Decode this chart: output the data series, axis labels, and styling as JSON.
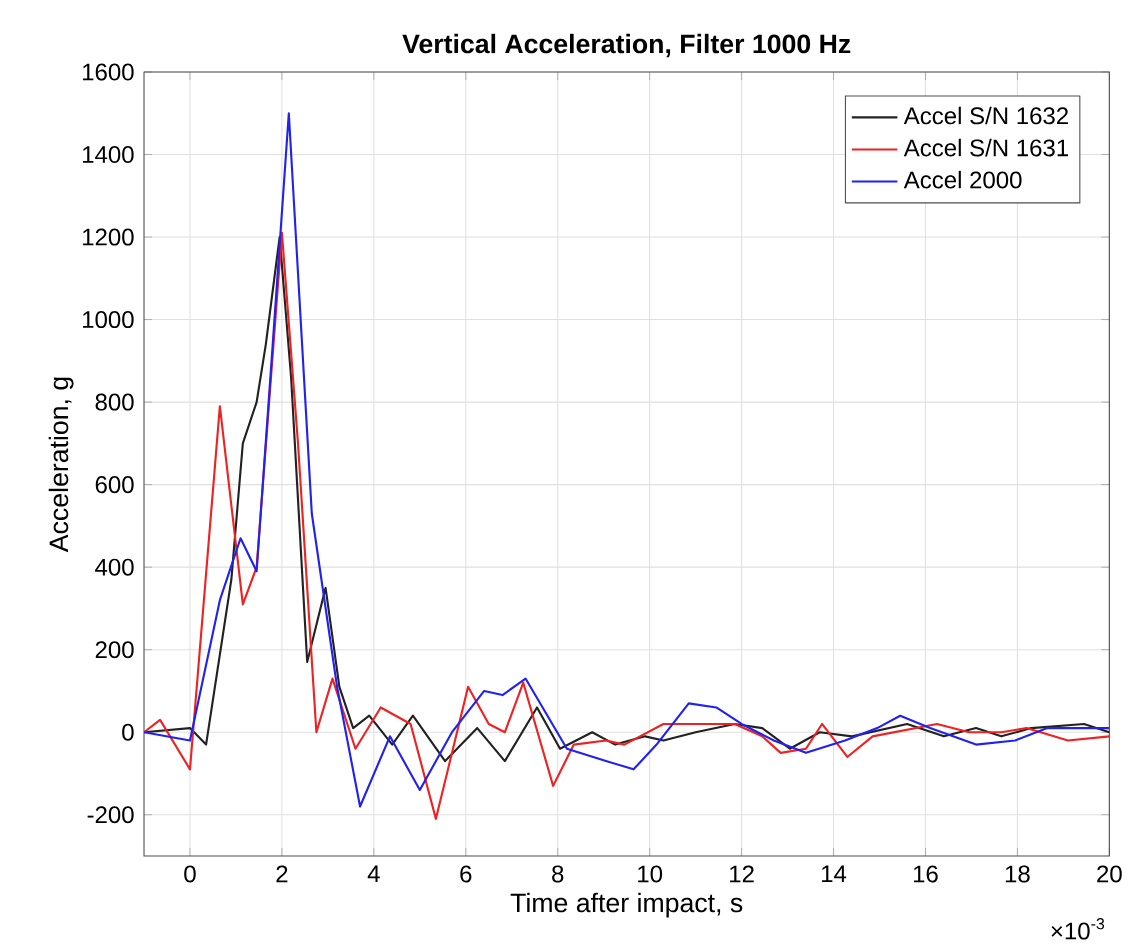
{
  "chart_data": {
    "type": "line",
    "title": "Vertical Acceleration, Filter 1000 Hz",
    "xlabel": "Time after impact, s",
    "ylabel": "Acceleration, g",
    "annotations": [
      "×10$^{-3}$"
    ],
    "xlim": [
      -1,
      20
    ],
    "ylim": [
      -300,
      1600
    ],
    "xticks": [
      0,
      2,
      4,
      6,
      8,
      10,
      12,
      14,
      16,
      18,
      20
    ],
    "yticks": [
      -200,
      0,
      200,
      400,
      600,
      800,
      1000,
      1200,
      1400,
      1600
    ],
    "grid": true,
    "legend": "top right",
    "marker": "none",
    "line_style": "solid",
    "series": [
      {
        "name": "Accel S/N 1632",
        "color": "#222222",
        "x": [
          -1,
          0,
          0.35,
          0.9,
          1.15,
          1.45,
          1.65,
          1.95,
          2.2,
          2.55,
          2.95,
          3.25,
          3.55,
          3.9,
          4.4,
          4.85,
          5.55,
          6.25,
          6.85,
          7.55,
          8.05,
          8.75,
          9.25,
          9.9,
          10.3,
          11,
          11.85,
          12.45,
          13.05,
          13.7,
          14.4,
          15.6,
          16.4,
          17.1,
          17.65,
          18.3,
          19.45,
          20
        ],
        "values": [
          0,
          10,
          -30,
          370,
          700,
          800,
          940,
          1200,
          860,
          170,
          350,
          110,
          10,
          40,
          -30,
          40,
          -70,
          10,
          -70,
          60,
          -40,
          0,
          -30,
          -10,
          -20,
          0,
          20,
          10,
          -40,
          0,
          -10,
          20,
          -10,
          10,
          -10,
          10,
          20,
          0
        ]
      },
      {
        "name": "Accel S/N 1631",
        "color": "#ee2222",
        "x": [
          -1,
          -0.65,
          0,
          0.65,
          1.15,
          1.45,
          2,
          2.35,
          2.75,
          3.1,
          3.6,
          4.15,
          4.8,
          5.35,
          6.05,
          6.5,
          6.85,
          7.25,
          7.9,
          8.35,
          9.05,
          9.45,
          10.3,
          11.85,
          12.45,
          12.85,
          13.4,
          13.75,
          14.3,
          14.85,
          16.25,
          16.95,
          17.65,
          18.2,
          19.1,
          20
        ],
        "values": [
          0,
          30,
          -90,
          790,
          310,
          400,
          1210,
          700,
          0,
          130,
          -40,
          60,
          20,
          -210,
          110,
          20,
          0,
          120,
          -130,
          -30,
          -20,
          -30,
          20,
          20,
          -10,
          -50,
          -40,
          20,
          -60,
          -10,
          20,
          0,
          0,
          10,
          -20,
          -10
        ]
      },
      {
        "name": "Accel 2000",
        "color": "#2222ee",
        "x": [
          -1,
          0,
          0.65,
          1.1,
          1.45,
          1.8,
          2.15,
          2.65,
          3.2,
          3.7,
          4.35,
          5,
          5.7,
          6.4,
          6.8,
          7.3,
          8.2,
          9.05,
          9.65,
          10.15,
          10.85,
          11.45,
          12,
          12.7,
          13.4,
          14.25,
          14.95,
          15.45,
          16.1,
          17.1,
          17.95,
          18.65,
          20
        ],
        "values": [
          0,
          -20,
          320,
          470,
          390,
          940,
          1500,
          530,
          110,
          -180,
          -10,
          -140,
          0,
          100,
          90,
          130,
          -40,
          -70,
          -90,
          -30,
          70,
          60,
          20,
          -20,
          -50,
          -20,
          10,
          40,
          10,
          -30,
          -20,
          10,
          10
        ]
      }
    ]
  }
}
